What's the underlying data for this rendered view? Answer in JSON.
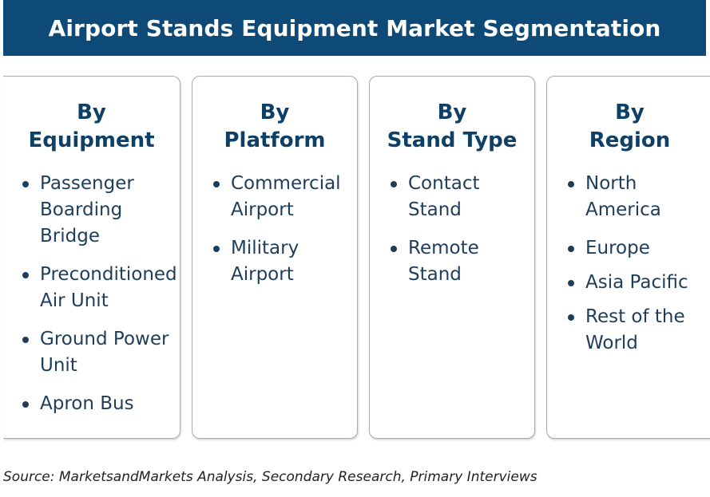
{
  "title": "Airport Stands Equipment Market Segmentation",
  "columns": [
    {
      "heading_line1": "By",
      "heading_line2": "Equipment",
      "items": [
        "Passenger Boarding Bridge",
        "Preconditioned Air Unit",
        "Ground Power Unit",
        "Apron Bus"
      ]
    },
    {
      "heading_line1": "By",
      "heading_line2": "Platform",
      "items": [
        "Commercial Airport",
        "Military Airport"
      ]
    },
    {
      "heading_line1": "By",
      "heading_line2": "Stand Type",
      "items": [
        "Contact Stand",
        "Remote Stand"
      ]
    },
    {
      "heading_line1": "By",
      "heading_line2": "Region",
      "items": [
        "North America",
        "Europe",
        "Asia Pacific",
        "Rest of the World"
      ]
    }
  ],
  "source": "Source: MarketsandMarkets Analysis, Secondary Research, Primary Interviews",
  "colors": {
    "title_bg": "#0e4a78",
    "heading_text": "#0e3f67",
    "item_text": "#1e3d5a"
  }
}
